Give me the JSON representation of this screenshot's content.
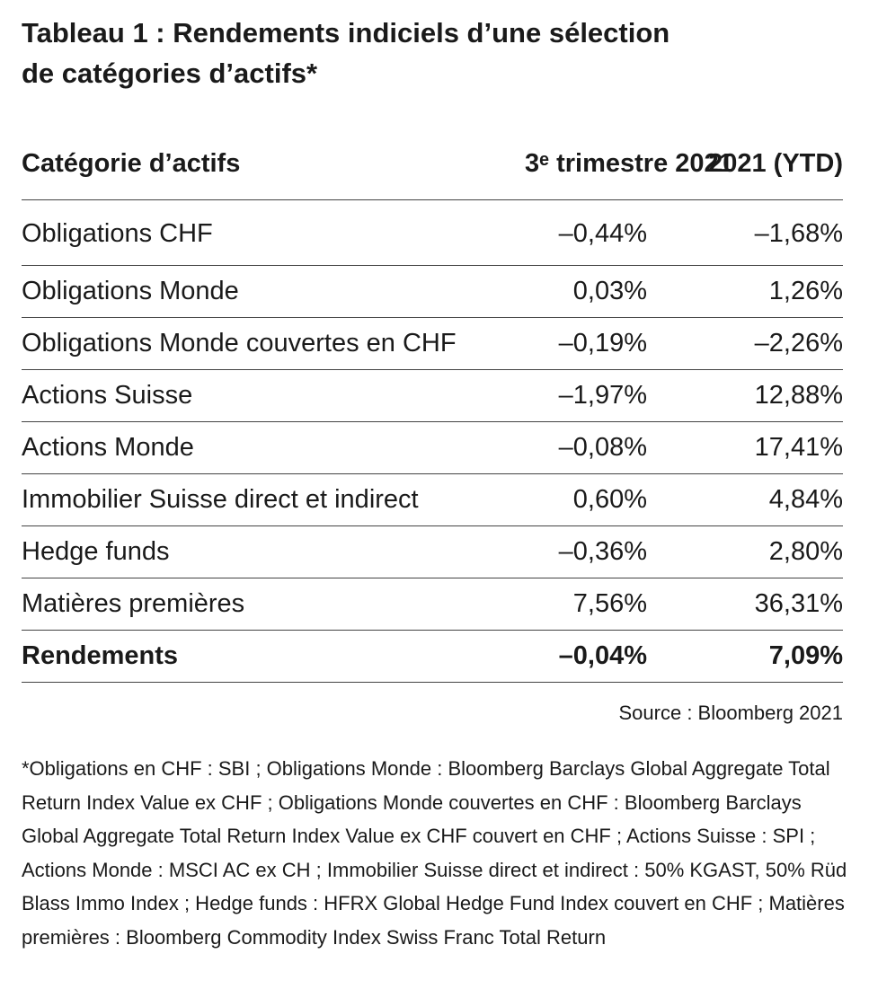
{
  "title_lines": [
    "Tableau 1 : Rendements indiciels d’une sélection",
    "de catégories d’actifs*"
  ],
  "table": {
    "header": [
      "Catégorie d’actifs",
      "3ᵉ trimestre 2021",
      "2021 (YTD)"
    ],
    "rows": [
      [
        "Obligations CHF",
        "–0,44%",
        "–1,68%"
      ],
      [
        "Obligations Monde",
        "0,03%",
        "1,26%"
      ],
      [
        "Obligations Monde couvertes en CHF",
        "–0,19%",
        "–2,26%"
      ],
      [
        "Actions Suisse",
        "–1,97%",
        "12,88%"
      ],
      [
        "Actions Monde",
        "–0,08%",
        "17,41%"
      ],
      [
        "Immobilier Suisse direct et indirect",
        "0,60%",
        "4,84%"
      ],
      [
        "Hedge funds",
        "–0,36%",
        "2,80%"
      ],
      [
        "Matières premières",
        "7,56%",
        "36,31%"
      ]
    ],
    "total": [
      "Rendements",
      "–0,04%",
      "7,09%"
    ]
  },
  "source": "Source : Bloomberg 2021",
  "footnote": "*Obligations en CHF : SBI ; Obligations Monde : Bloomberg Barclays Global Aggregate Total Return Index Value ex CHF ; Obligations Monde couvertes en CHF : Bloomberg Barclays Global Aggregate Total Return Index Value ex CHF couvert en CHF ; Actions Suisse : SPI ; Actions Monde : MSCI AC ex CH ; Immobilier Suisse direct et indirect : 50% KGAST, 50% Rüd Blass Immo Index ; Hedge funds : HFRX Global Hedge Fund Index couvert en CHF ; Matières premières : Bloomberg Commodity Index Swiss Franc Total Return"
}
